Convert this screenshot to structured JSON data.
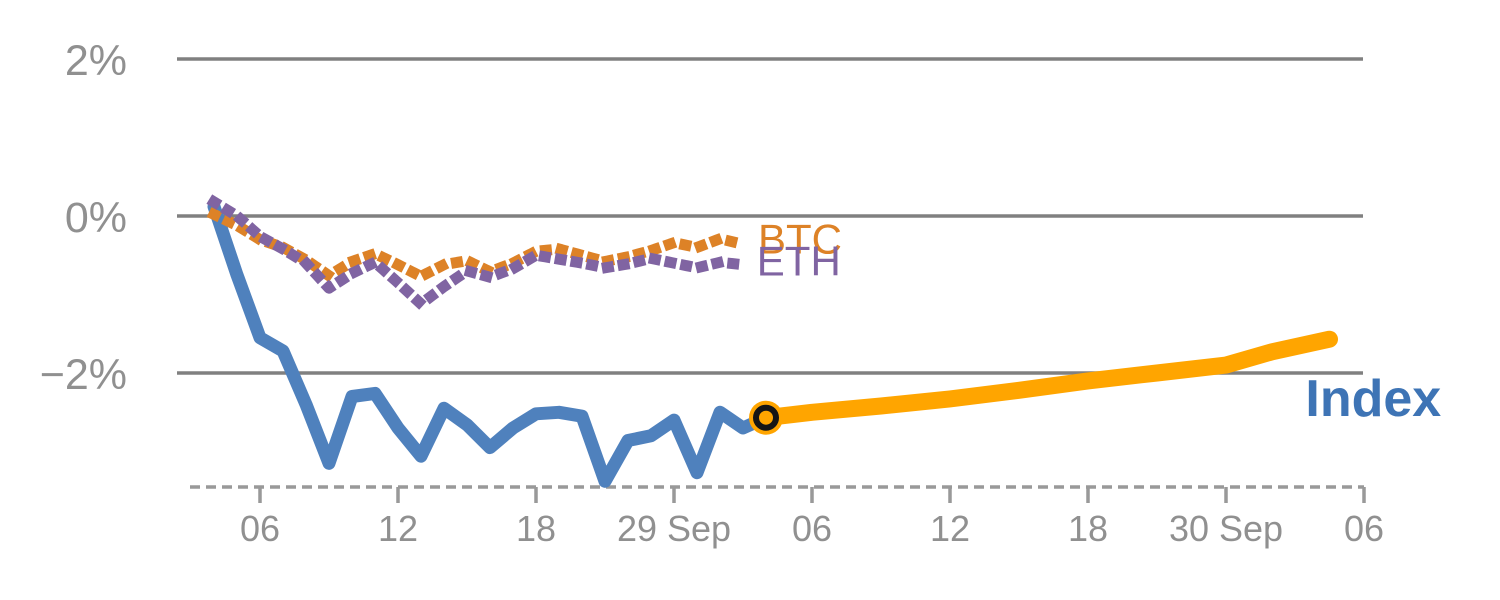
{
  "chart_data": {
    "type": "line",
    "title": "",
    "colors": {
      "background": "#ffffff",
      "grid": "#808080",
      "axis": "#999999",
      "tick_text": "#909090"
    },
    "x_axis": {
      "unit": "hours",
      "ticks": [
        {
          "t": 6,
          "label": "06"
        },
        {
          "t": 12,
          "label": "12"
        },
        {
          "t": 18,
          "label": "18"
        },
        {
          "t": 24,
          "label": "29 Sep"
        },
        {
          "t": 30,
          "label": "06"
        },
        {
          "t": 36,
          "label": "12"
        },
        {
          "t": 42,
          "label": "18"
        },
        {
          "t": 48,
          "label": "30 Sep"
        },
        {
          "t": 54,
          "label": "06"
        }
      ]
    },
    "y_axis": {
      "grid": true,
      "ticks": [
        {
          "v": 2,
          "label": "2%"
        },
        {
          "v": 0,
          "label": "0%"
        },
        {
          "v": -2,
          "label": "−2%"
        }
      ],
      "range": [
        -3.6,
        2.6
      ]
    },
    "series": [
      {
        "name": "Index",
        "color": "#4f81bd",
        "style": "solid",
        "width": 13,
        "t0": 4,
        "dt": 1,
        "values": [
          0.12,
          -0.75,
          -1.55,
          -1.72,
          -2.4,
          -3.15,
          -2.3,
          -2.26,
          -2.7,
          -3.06,
          -2.45,
          -2.66,
          -2.95,
          -2.7,
          -2.52,
          -2.5,
          -2.55,
          -3.38,
          -2.86,
          -2.8,
          -2.6,
          -3.27,
          -2.5,
          -2.7,
          -2.57
        ]
      },
      {
        "name": "BTC",
        "color": "#dd8227",
        "style": "dotted",
        "width": 11,
        "t0": 4,
        "dt": 1,
        "values": [
          0.02,
          -0.12,
          -0.3,
          -0.4,
          -0.56,
          -0.76,
          -0.58,
          -0.48,
          -0.62,
          -0.77,
          -0.62,
          -0.57,
          -0.71,
          -0.6,
          -0.45,
          -0.42,
          -0.5,
          -0.58,
          -0.52,
          -0.44,
          -0.34,
          -0.4,
          -0.29,
          -0.36
        ]
      },
      {
        "name": "ETH",
        "color": "#8064a2",
        "style": "dotted",
        "width": 11,
        "t0": 4,
        "dt": 1,
        "values": [
          0.18,
          0.0,
          -0.26,
          -0.42,
          -0.6,
          -0.92,
          -0.73,
          -0.59,
          -0.85,
          -1.12,
          -0.9,
          -0.7,
          -0.78,
          -0.67,
          -0.5,
          -0.55,
          -0.6,
          -0.66,
          -0.61,
          -0.54,
          -0.6,
          -0.66,
          -0.59,
          -0.62
        ]
      },
      {
        "name": "Index forecast",
        "color": "#ffa500",
        "style": "solid",
        "width": 17,
        "x": [
          28,
          30,
          33,
          36,
          39,
          42,
          45,
          48,
          50,
          52.5
        ],
        "values": [
          -2.57,
          -2.5,
          -2.42,
          -2.33,
          -2.22,
          -2.1,
          -2.0,
          -1.9,
          -1.73,
          -1.57
        ]
      }
    ],
    "marker": {
      "t": 28,
      "value": -2.57,
      "fill": "#ffa500",
      "ring_color": "#151515"
    },
    "series_labels": [
      {
        "id": "btc-label",
        "text": "BTC",
        "color": "#dd8227",
        "t": 27.65,
        "v": -0.48,
        "size": 42,
        "bold": false
      },
      {
        "id": "eth-label",
        "text": "ETH",
        "color": "#8064a2",
        "t": 27.6,
        "v": -0.76,
        "size": 42,
        "bold": false
      },
      {
        "id": "index-label",
        "text": "Index",
        "color": "#3e74b5",
        "t": 51.45,
        "v": -2.55,
        "size": 52,
        "bold": true
      }
    ]
  }
}
